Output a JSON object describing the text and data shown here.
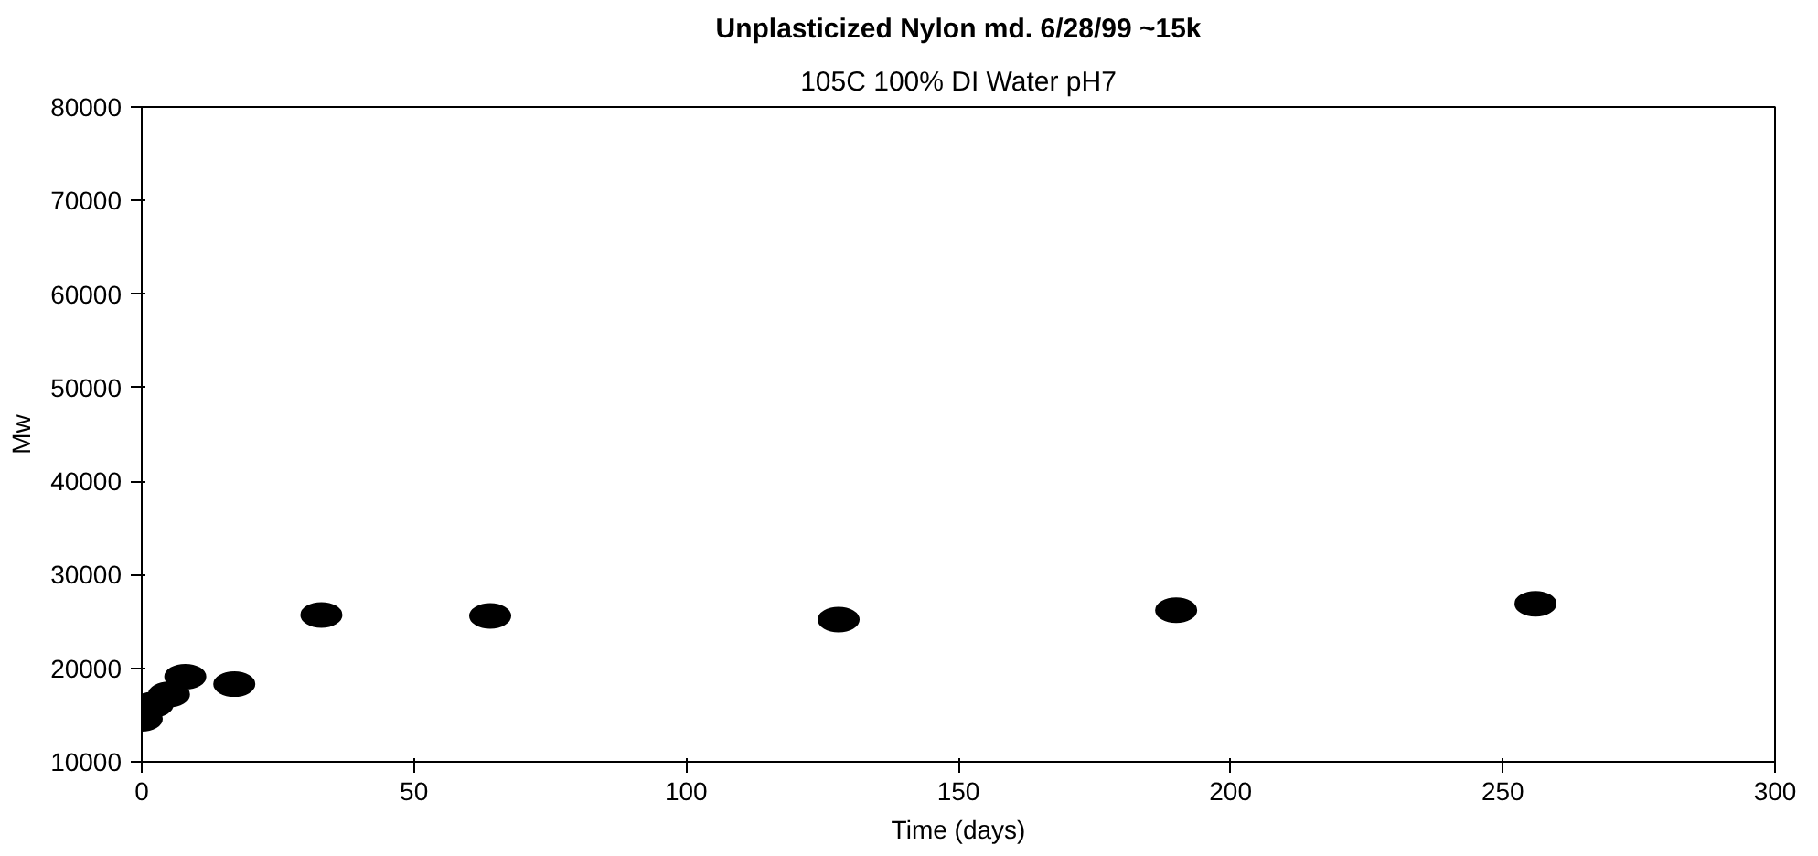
{
  "chart_data": {
    "type": "scatter",
    "title": "Unplasticized Nylon md. 6/28/99 ~15k",
    "subtitle": "105C 100% DI Water pH7",
    "xlabel": "Time (days)",
    "ylabel": "Mw",
    "x": [
      0,
      2,
      5,
      8,
      17,
      33,
      64,
      128,
      190,
      256
    ],
    "values": [
      14600,
      16100,
      17200,
      19100,
      18300,
      25700,
      25600,
      25200,
      26200,
      26900
    ],
    "color": "#000000",
    "marker": "circle",
    "grid": false,
    "xlim": [
      0,
      300
    ],
    "xticks": [
      0,
      50,
      100,
      150,
      200,
      250,
      300
    ],
    "ylim": [
      10000,
      80000
    ],
    "yticks": [
      10000,
      20000,
      30000,
      40000,
      50000,
      60000,
      70000,
      80000
    ]
  }
}
